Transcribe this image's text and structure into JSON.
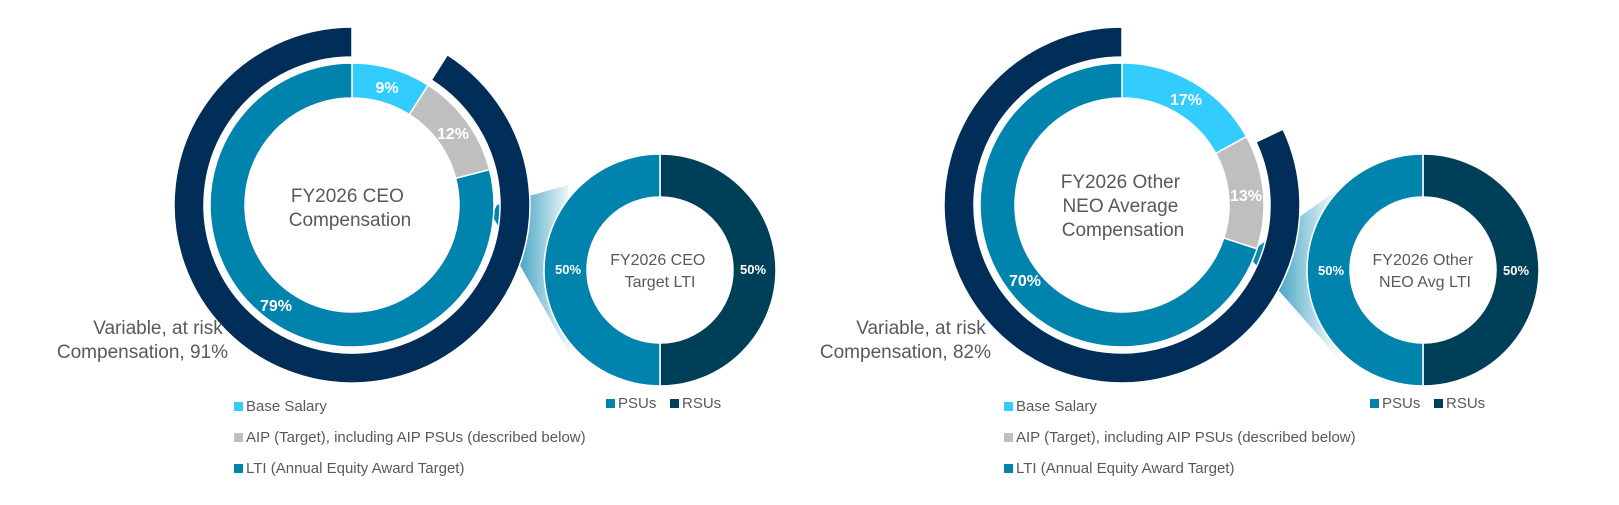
{
  "colors": {
    "base_salary": "#33ccff",
    "aip": "#bfbfbf",
    "lti": "#0083ad",
    "variable_at_risk": "#002e58",
    "psus": "#0083ad",
    "rsus": "#003f58",
    "text": "#595959"
  },
  "chart_data": [
    {
      "type": "pie",
      "subtype": "donut",
      "title": "FY2026 CEO Compensation",
      "title_lines": [
        "FY2026 CEO",
        "Compensation"
      ],
      "categories": [
        "Base Salary",
        "AIP (Target), including AIP PSUs (described below)",
        "LTI (Annual Equity Award Target)"
      ],
      "values": [
        9,
        12,
        79
      ],
      "value_labels": [
        "9%",
        "12%",
        "79%"
      ],
      "outer_ring": {
        "label_lines": [
          "Variable, at risk",
          "Compensation, 91%"
        ],
        "value": 91
      },
      "legend_position": "bottom"
    },
    {
      "type": "pie",
      "subtype": "donut",
      "title": "FY2026 CEO Target LTI",
      "title_lines": [
        "FY2026 CEO",
        "Target LTI"
      ],
      "categories": [
        "PSUs",
        "RSUs"
      ],
      "values": [
        50,
        50
      ],
      "value_labels": [
        "50%",
        "50%"
      ],
      "legend_position": "bottom"
    },
    {
      "type": "pie",
      "subtype": "donut",
      "title": "FY2026 Other NEO Average Compensation",
      "title_lines": [
        "FY2026 Other",
        "NEO Average",
        "Compensation"
      ],
      "categories": [
        "Base Salary",
        "AIP (Target), including AIP PSUs (described below)",
        "LTI (Annual Equity Award Target)"
      ],
      "values": [
        17,
        13,
        70
      ],
      "value_labels": [
        "17%",
        "13%",
        "70%"
      ],
      "outer_ring": {
        "label_lines": [
          "Variable, at risk",
          "Compensation, 82%"
        ],
        "value": 82
      },
      "legend_position": "bottom"
    },
    {
      "type": "pie",
      "subtype": "donut",
      "title": "FY2026 Other NEO Avg LTI",
      "title_lines": [
        "FY2026 Other",
        "NEO Avg LTI"
      ],
      "categories": [
        "PSUs",
        "RSUs"
      ],
      "values": [
        50,
        50
      ],
      "value_labels": [
        "50%",
        "50%"
      ],
      "legend_position": "bottom"
    }
  ]
}
